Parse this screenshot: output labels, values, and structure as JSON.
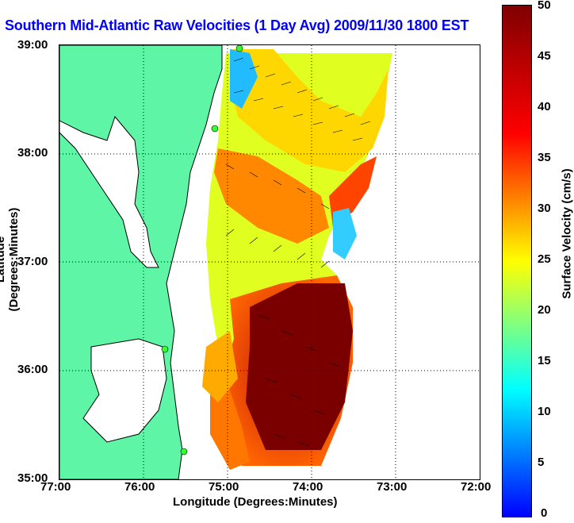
{
  "title": "Southern Mid-Atlantic Raw Velocities (1 Day Avg) 2009/11/30 1800 EST",
  "x_axis": {
    "label": "Longitude (Degrees:Minutes)",
    "ticks": [
      "77:00",
      "76:00",
      "75:00",
      "74:00",
      "73:00",
      "72:00"
    ]
  },
  "y_axis": {
    "label": "Latitude (Degrees:Minutes)",
    "ticks": [
      "39:00",
      "38:00",
      "37:00",
      "36:00",
      "35:00"
    ]
  },
  "colorbar": {
    "label": "Surface Velocity (cm/s)",
    "ticks": [
      "50",
      "45",
      "40",
      "35",
      "30",
      "25",
      "20",
      "15",
      "10",
      "5",
      "0"
    ],
    "range": [
      0,
      50
    ],
    "colormap": [
      "#0000ff",
      "#00ffff",
      "#ffff00",
      "#ff0000",
      "#800000"
    ]
  },
  "map": {
    "lon_range": [
      -77,
      -72
    ],
    "lat_range": [
      35,
      39
    ],
    "land_color": "#5ff5a6",
    "grid": "dotted",
    "station_color": "#33ff33"
  }
}
